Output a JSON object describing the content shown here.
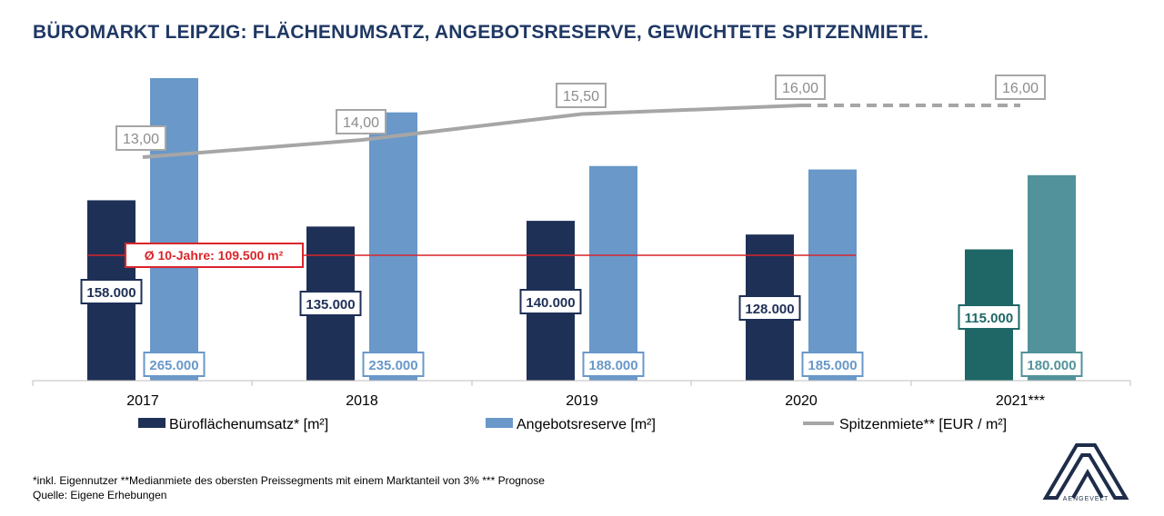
{
  "title": "BÜROMARKT LEIPZIG: FLÄCHENUMSATZ, ANGEBOTSRESERVE, GEWICHTETE SPITZENMIETE.",
  "chart_data": {
    "type": "bar",
    "categories": [
      "2017",
      "2018",
      "2019",
      "2020",
      "2021***"
    ],
    "series": [
      {
        "name": "Büroflächenumsatz* [m²]",
        "type": "bar",
        "values": [
          158000,
          135000,
          140000,
          128000,
          115000
        ],
        "labels": [
          "158.000",
          "135.000",
          "140.000",
          "128.000",
          "115.000"
        ],
        "color": "#1f3057",
        "forecast_color": "#1e6766"
      },
      {
        "name": "Angebotsreserve [m²]",
        "type": "bar",
        "values": [
          265000,
          235000,
          188000,
          185000,
          180000
        ],
        "labels": [
          "265.000",
          "235.000",
          "188.000",
          "185.000",
          "180.000"
        ],
        "color": "#6998c9",
        "forecast_color": "#52929a"
      },
      {
        "name": "Spitzenmiete** [EUR / m²]",
        "type": "line",
        "values": [
          13.0,
          14.0,
          15.5,
          16.0,
          16.0
        ],
        "labels": [
          "13,00",
          "14,00",
          "15,50",
          "16,00",
          "16,00"
        ],
        "color": "#a6a6a6",
        "forecast_dashed": true
      }
    ],
    "reference_line": {
      "label": "Ø 10-Jahre: 109.500 m²",
      "value": 109500,
      "color": "#d9252a"
    },
    "forecast_index": 4,
    "legend_position": "bottom",
    "grid": false
  },
  "footnote": {
    "line1": "*inkl. Eigennutzer **Medianmiete des obersten Preissegments mit einem Marktanteil von 3% *** Prognose",
    "line2": "Quelle: Eigene Erhebungen"
  },
  "logo": {
    "text": "AENGEVELT",
    "color": "#1f2d4a"
  }
}
